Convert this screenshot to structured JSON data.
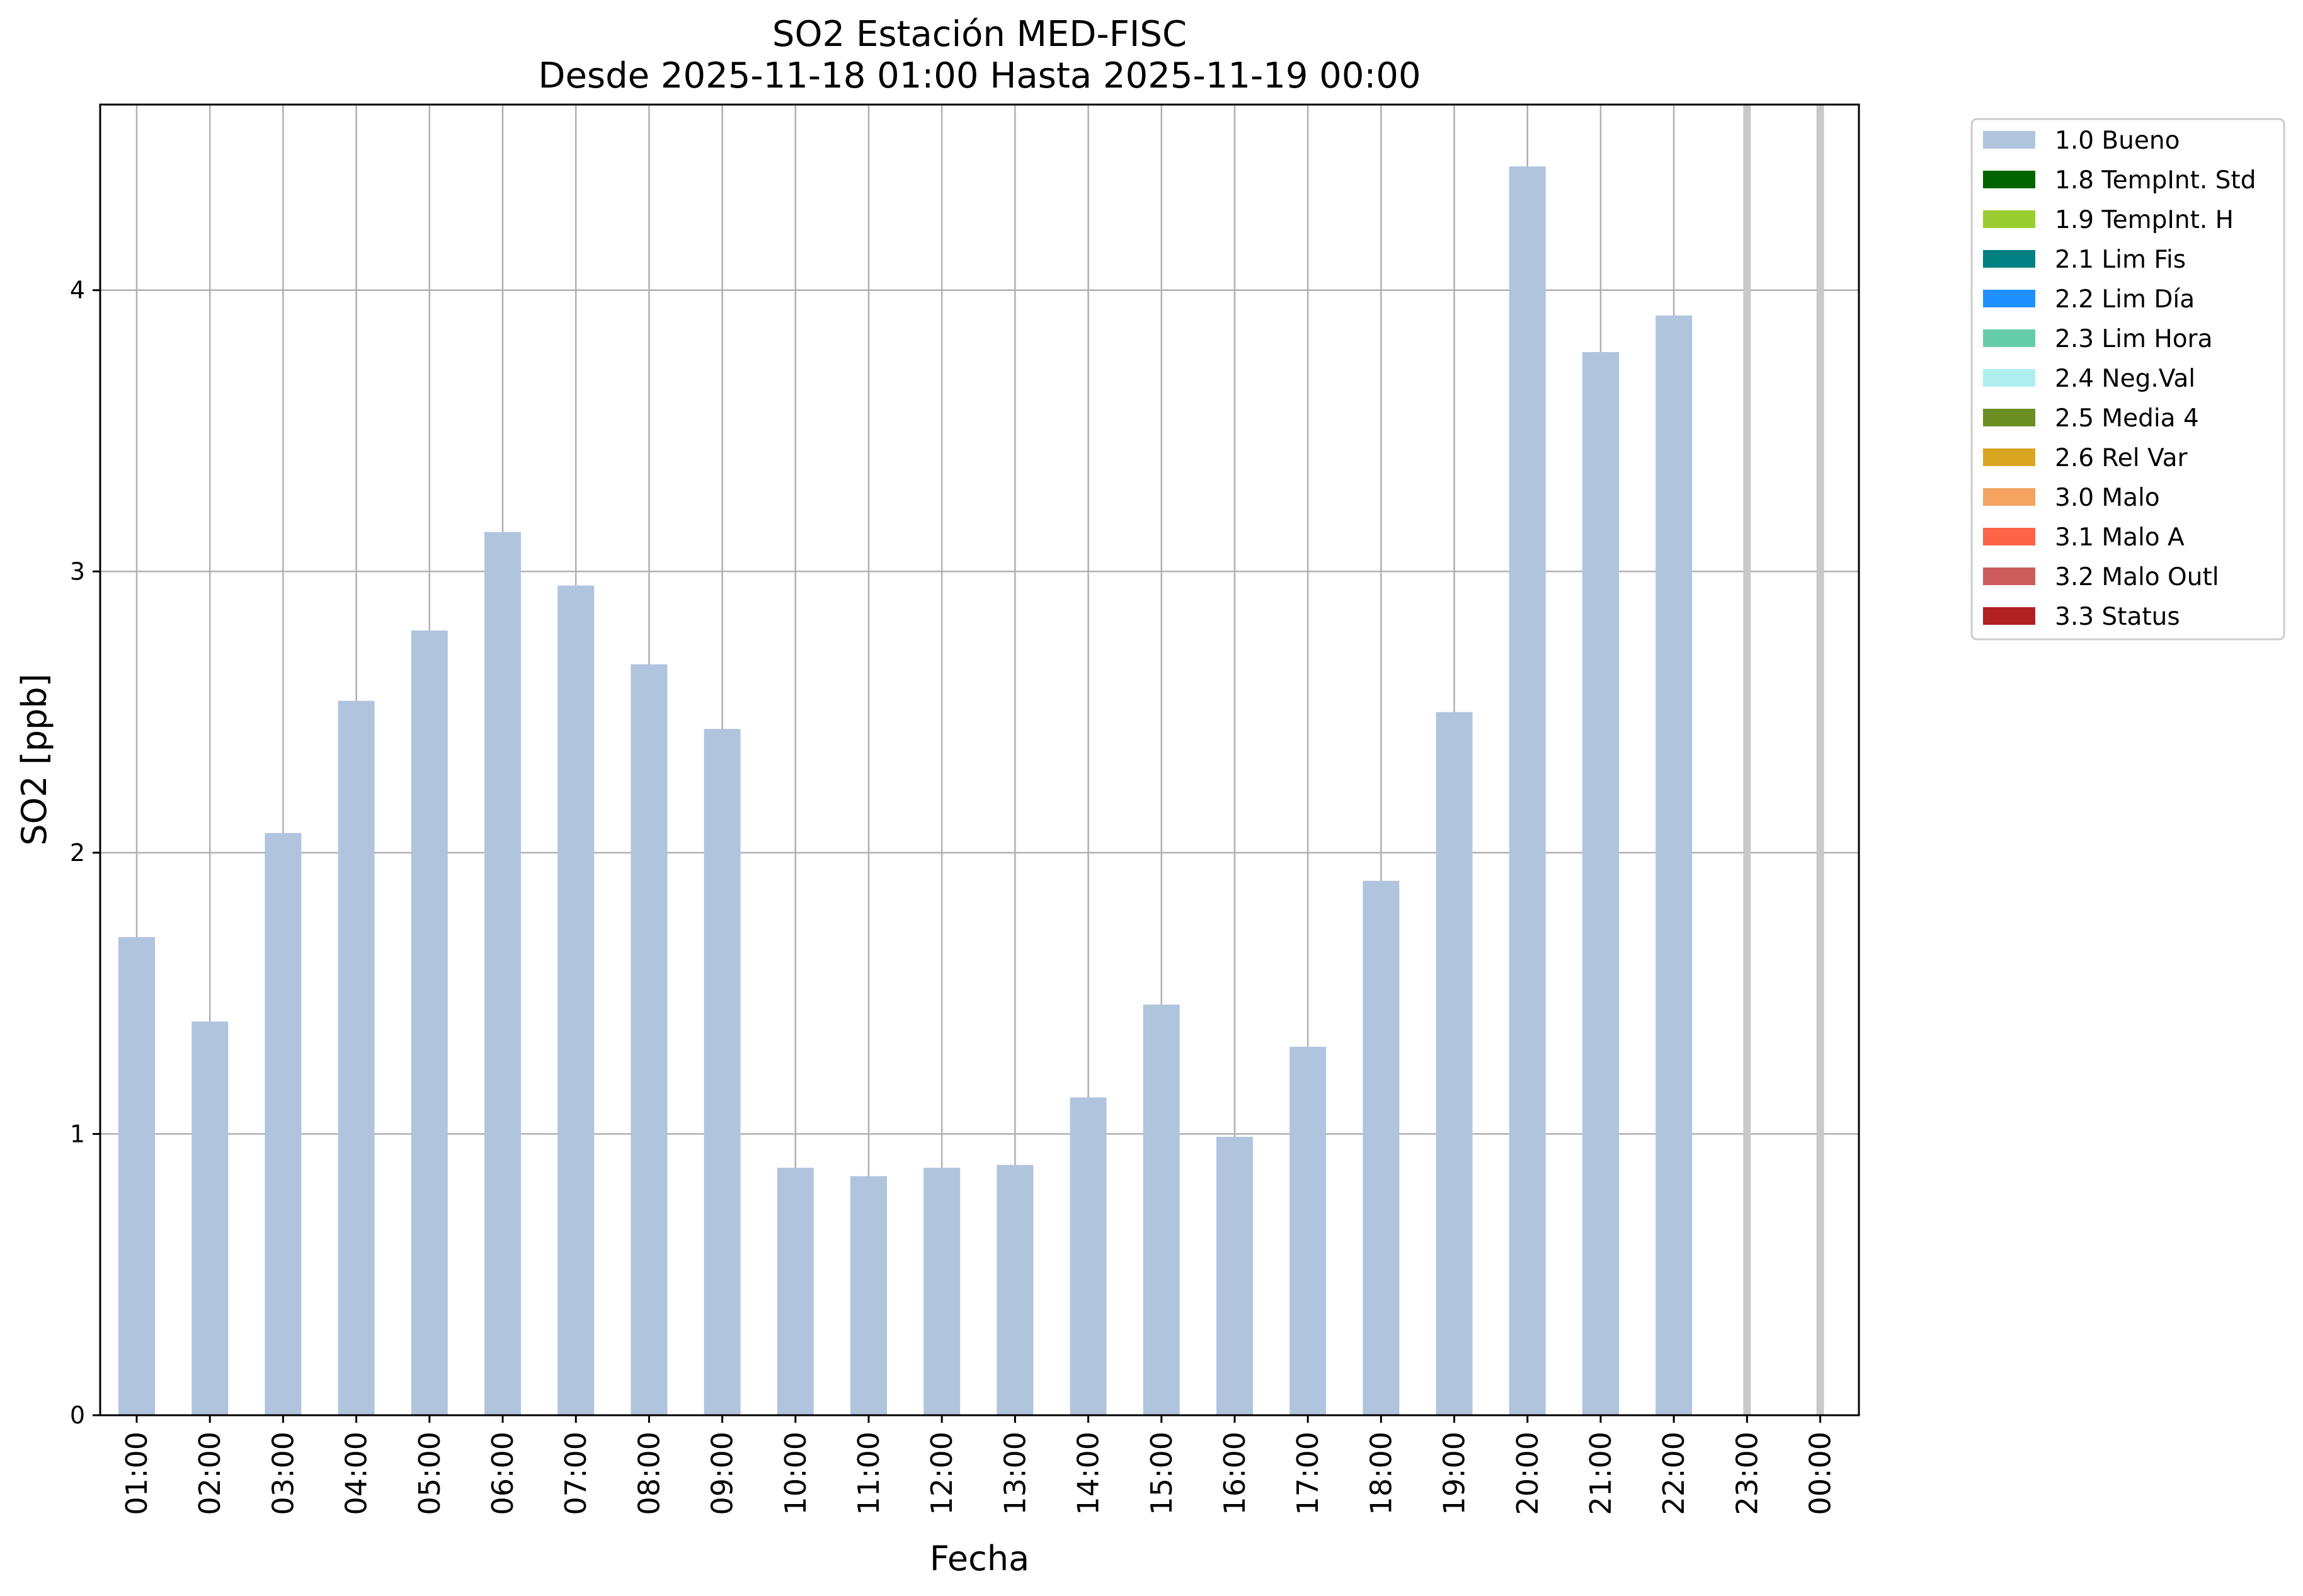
{
  "chart_data": {
    "type": "bar",
    "title": "SO2 Estación MED-FISC",
    "subtitle": "Desde 2025-11-18 01:00 Hasta 2025-11-19 00:00",
    "xlabel": "Fecha",
    "ylabel": "SO2 [ppb]",
    "categories": [
      "01:00",
      "02:00",
      "03:00",
      "04:00",
      "05:00",
      "06:00",
      "07:00",
      "08:00",
      "09:00",
      "10:00",
      "11:00",
      "12:00",
      "13:00",
      "14:00",
      "15:00",
      "16:00",
      "17:00",
      "18:00",
      "19:00",
      "20:00",
      "21:00",
      "22:00",
      "23:00",
      "00:00"
    ],
    "series": [
      {
        "name": "1.0 Bueno",
        "color": "#b0c4de",
        "values": [
          1.7,
          1.4,
          2.07,
          2.54,
          2.79,
          3.14,
          2.95,
          2.67,
          2.44,
          0.88,
          0.85,
          0.88,
          0.89,
          1.13,
          1.46,
          0.99,
          1.31,
          1.9,
          2.5,
          4.44,
          3.78,
          3.91,
          null,
          null
        ]
      }
    ],
    "ylim": [
      0,
      4.66
    ],
    "yticks": [
      0,
      1,
      2,
      3,
      4
    ],
    "grid": true,
    "missing_markers": [
      "23:00",
      "00:00"
    ],
    "legend_position": "outside-right",
    "legend": [
      {
        "label": "1.0 Bueno",
        "color": "#b0c4de"
      },
      {
        "label": "1.8 TempInt. Std",
        "color": "#006400"
      },
      {
        "label": "1.9 TempInt. H",
        "color": "#9acd32"
      },
      {
        "label": "2.1 Lim Fis",
        "color": "#008080"
      },
      {
        "label": "2.2 Lim Día",
        "color": "#1e90ff"
      },
      {
        "label": "2.3 Lim Hora",
        "color": "#66cdaa"
      },
      {
        "label": "2.4 Neg.Val",
        "color": "#afeeee"
      },
      {
        "label": "2.5 Media 4",
        "color": "#6b8e23"
      },
      {
        "label": "2.6 Rel Var",
        "color": "#daa520"
      },
      {
        "label": "3.0 Malo",
        "color": "#f4a460"
      },
      {
        "label": "3.1 Malo A",
        "color": "#ff6347"
      },
      {
        "label": "3.2 Malo Outl",
        "color": "#cd5c5c"
      },
      {
        "label": "3.3 Status",
        "color": "#b22222"
      }
    ]
  }
}
